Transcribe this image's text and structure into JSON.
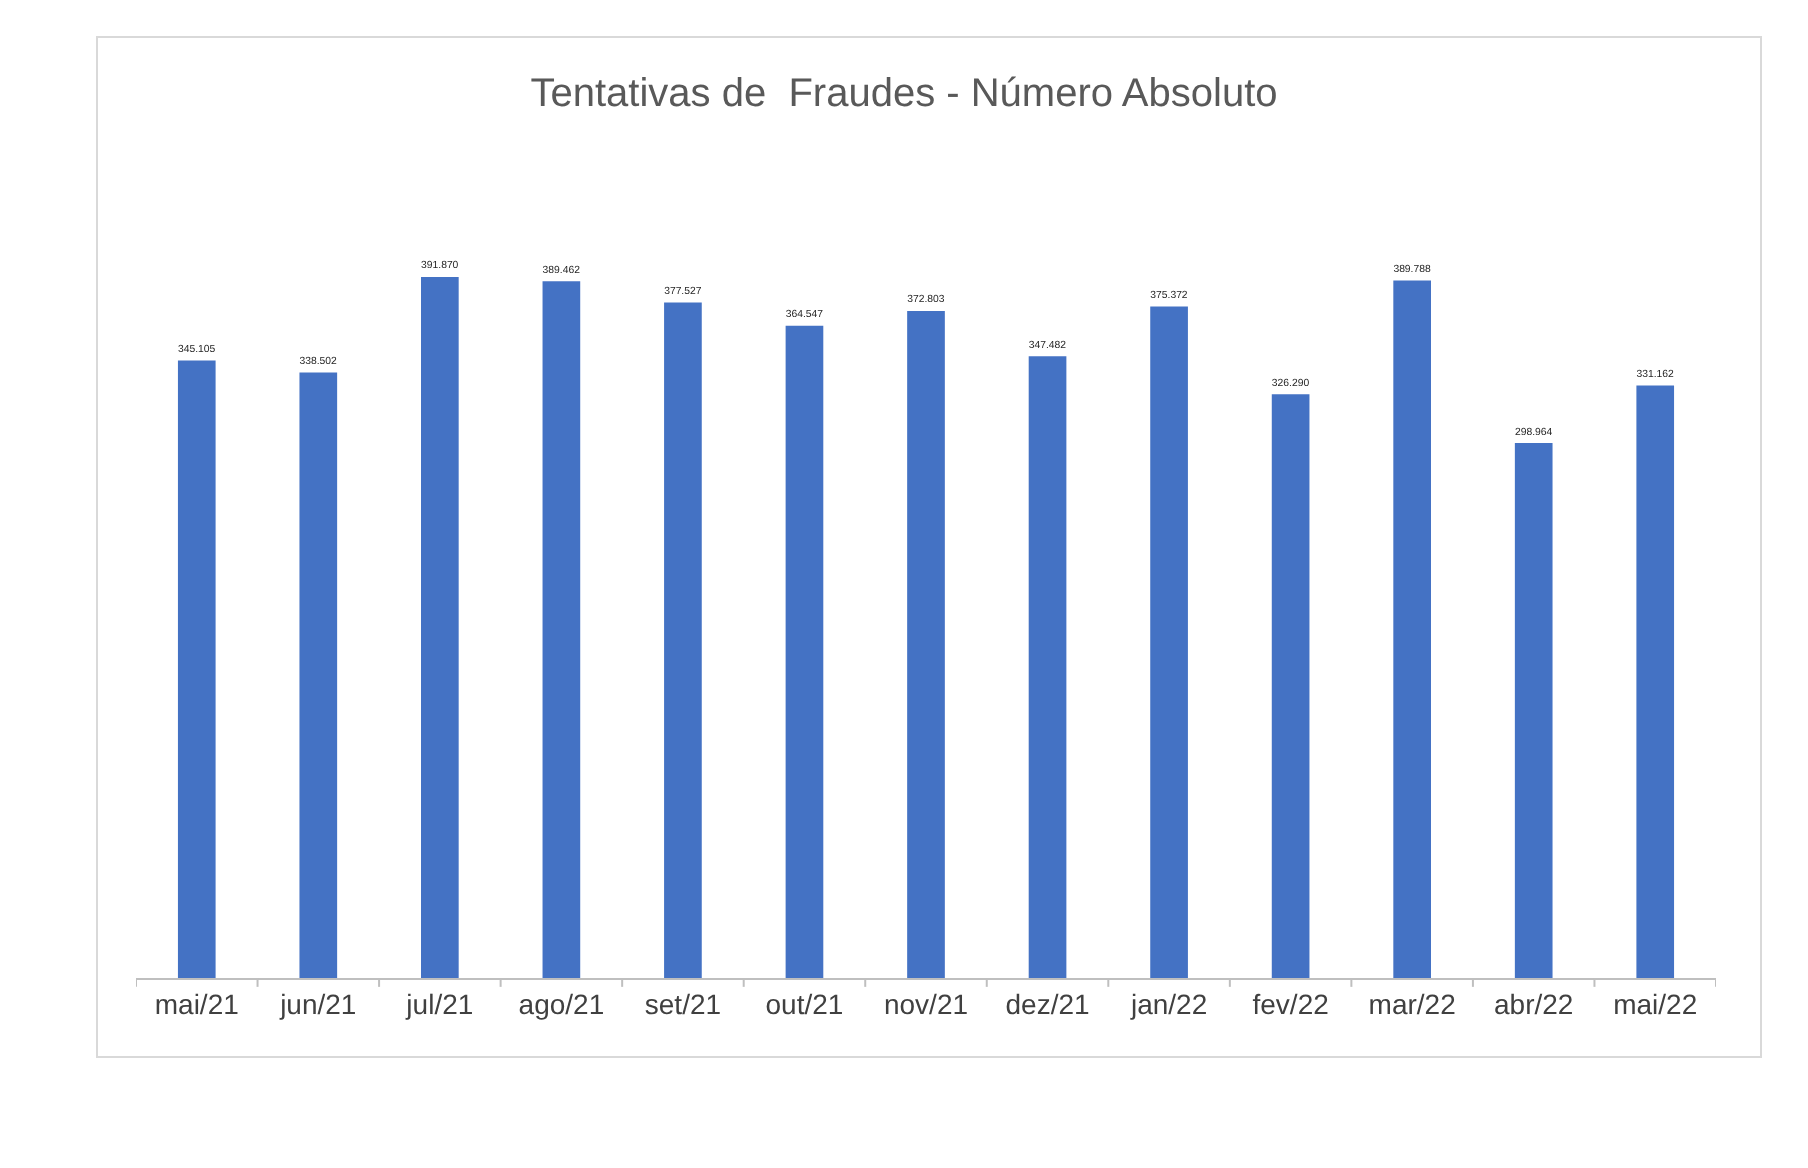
{
  "chart_data": {
    "type": "bar",
    "title": "Tentativas de  Fraudes - Número Absoluto",
    "categories": [
      "mai/21",
      "jun/21",
      "jul/21",
      "ago/21",
      "set/21",
      "out/21",
      "nov/21",
      "dez/21",
      "jan/22",
      "fev/22",
      "mar/22",
      "abr/22",
      "mai/22"
    ],
    "values": [
      345105,
      338502,
      391870,
      389462,
      377527,
      364547,
      372803,
      347482,
      375372,
      326290,
      389788,
      298964,
      331162
    ],
    "value_labels": [
      "345.105",
      "338.502",
      "391.870",
      "389.462",
      "377.527",
      "364.547",
      "372.803",
      "347.482",
      "375.372",
      "326.290",
      "389.788",
      "298.964",
      "331.162"
    ],
    "color": "#4472c4",
    "grid": false,
    "legend": false
  }
}
